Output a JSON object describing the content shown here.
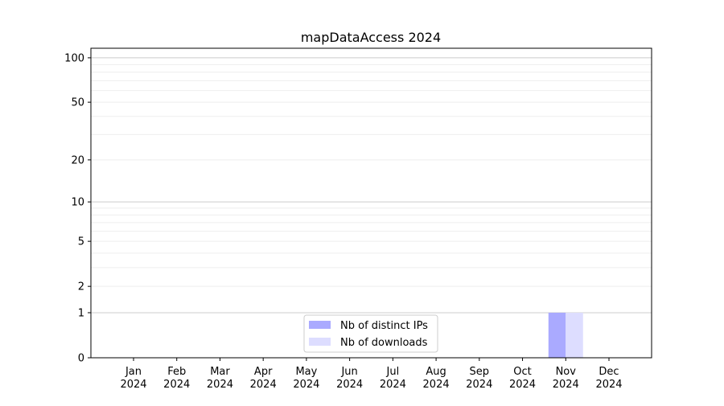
{
  "chart_data": {
    "type": "bar",
    "title": "mapDataAccess 2024",
    "xlabel": "",
    "ylabel": "",
    "categories": [
      "Jan\n2024",
      "Feb\n2024",
      "Mar\n2024",
      "Apr\n2024",
      "May\n2024",
      "Jun\n2024",
      "Jul\n2024",
      "Aug\n2024",
      "Sep\n2024",
      "Oct\n2024",
      "Nov\n2024",
      "Dec\n2024"
    ],
    "y_scale": "log(y+1)",
    "ylim": [
      0,
      116
    ],
    "y_ticks": [
      0,
      1,
      2,
      5,
      10,
      20,
      50,
      100
    ],
    "grid": true,
    "legend_position": "lower-center",
    "series": [
      {
        "name": "Nb of distinct IPs",
        "color": "#aaaaff",
        "values": [
          0,
          0,
          0,
          0,
          0,
          0,
          0,
          0,
          0,
          0,
          1,
          0
        ]
      },
      {
        "name": "Nb of downloads",
        "color": "#ddddff",
        "values": [
          0,
          0,
          0,
          0,
          0,
          0,
          0,
          0,
          0,
          0,
          1,
          0
        ]
      }
    ]
  }
}
